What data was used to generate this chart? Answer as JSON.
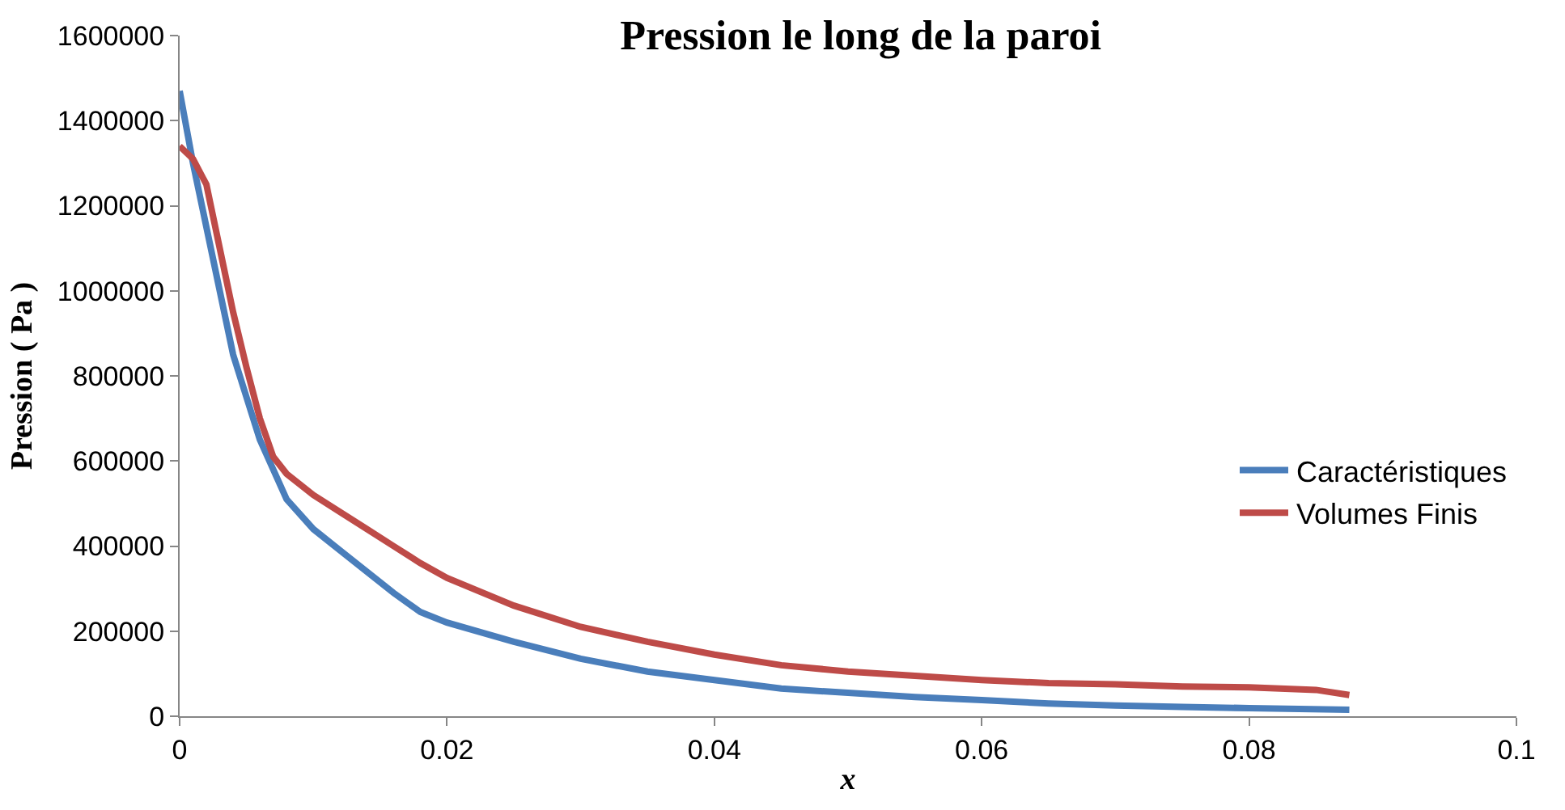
{
  "chart_data": {
    "type": "line",
    "title": "Pression le long de la paroi",
    "xlabel": "x",
    "ylabel": "Pression ( Pa )",
    "xlim": [
      0,
      0.1
    ],
    "xticks": [
      0,
      0.02,
      0.04,
      0.06,
      0.08,
      0.1
    ],
    "ylim": [
      0,
      1600000
    ],
    "yticks": [
      0,
      200000,
      400000,
      600000,
      800000,
      1000000,
      1200000,
      1400000,
      1600000
    ],
    "legend": "right",
    "marker": "none",
    "line_style": "solid",
    "series": [
      {
        "name": "Caractéristiques",
        "color": "#4a7ebb",
        "x": [
          0,
          0.001,
          0.002,
          0.004,
          0.006,
          0.008,
          0.01,
          0.012,
          0.014,
          0.016,
          0.018,
          0.02,
          0.025,
          0.03,
          0.035,
          0.04,
          0.045,
          0.05,
          0.055,
          0.06,
          0.065,
          0.07,
          0.075,
          0.08,
          0.0875
        ],
        "values": [
          1470000,
          1300000,
          1150000,
          850000,
          650000,
          510000,
          440000,
          390000,
          340000,
          290000,
          245000,
          220000,
          175000,
          135000,
          105000,
          85000,
          65000,
          55000,
          45000,
          38000,
          30000,
          25000,
          22000,
          19000,
          15000
        ]
      },
      {
        "name": "Volumes Finis",
        "color": "#be4b48",
        "x": [
          0,
          0.001,
          0.002,
          0.003,
          0.004,
          0.005,
          0.006,
          0.007,
          0.008,
          0.01,
          0.012,
          0.014,
          0.016,
          0.018,
          0.02,
          0.025,
          0.03,
          0.035,
          0.04,
          0.045,
          0.05,
          0.055,
          0.06,
          0.065,
          0.07,
          0.075,
          0.08,
          0.085,
          0.0875
        ],
        "values": [
          1340000,
          1310000,
          1250000,
          1100000,
          950000,
          820000,
          700000,
          610000,
          570000,
          520000,
          480000,
          440000,
          400000,
          360000,
          325000,
          260000,
          210000,
          175000,
          145000,
          120000,
          105000,
          95000,
          85000,
          78000,
          75000,
          70000,
          68000,
          62000,
          50000
        ]
      }
    ]
  }
}
